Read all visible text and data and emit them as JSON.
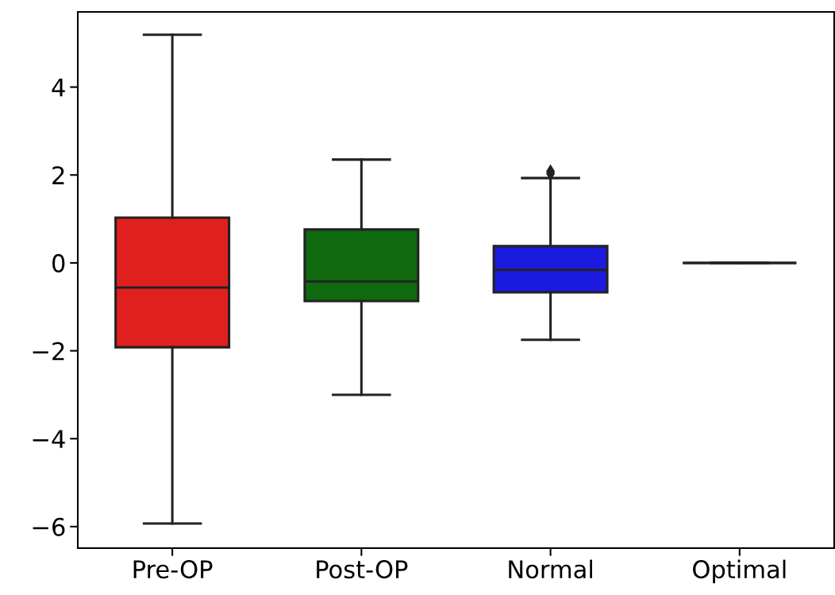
{
  "chart_data": {
    "type": "box",
    "categories": [
      "Pre-OP",
      "Post-OP",
      "Normal",
      "Optimal"
    ],
    "colors": [
      "#e0201f",
      "#0f6a0f",
      "#1b1be0",
      null
    ],
    "boxes": [
      {
        "low": -5.93,
        "q1": -1.92,
        "median": -0.56,
        "q3": 1.03,
        "high": 5.19
      },
      {
        "low": -3.0,
        "q1": -0.87,
        "median": -0.42,
        "q3": 0.76,
        "high": 2.35
      },
      {
        "low": -1.75,
        "q1": -0.67,
        "median": -0.16,
        "q3": 0.38,
        "high": 1.93,
        "outliers": [
          2.03,
          2.08
        ]
      },
      {
        "low": 0,
        "q1": 0,
        "median": 0,
        "q3": 0,
        "high": 0
      }
    ],
    "ylim": [
      -6.49,
      5.71
    ],
    "yticks": [
      {
        "value": -6,
        "label": "−6"
      },
      {
        "value": -4,
        "label": "−4"
      },
      {
        "value": -2,
        "label": "−2"
      },
      0,
      2,
      4
    ],
    "grid": false
  }
}
